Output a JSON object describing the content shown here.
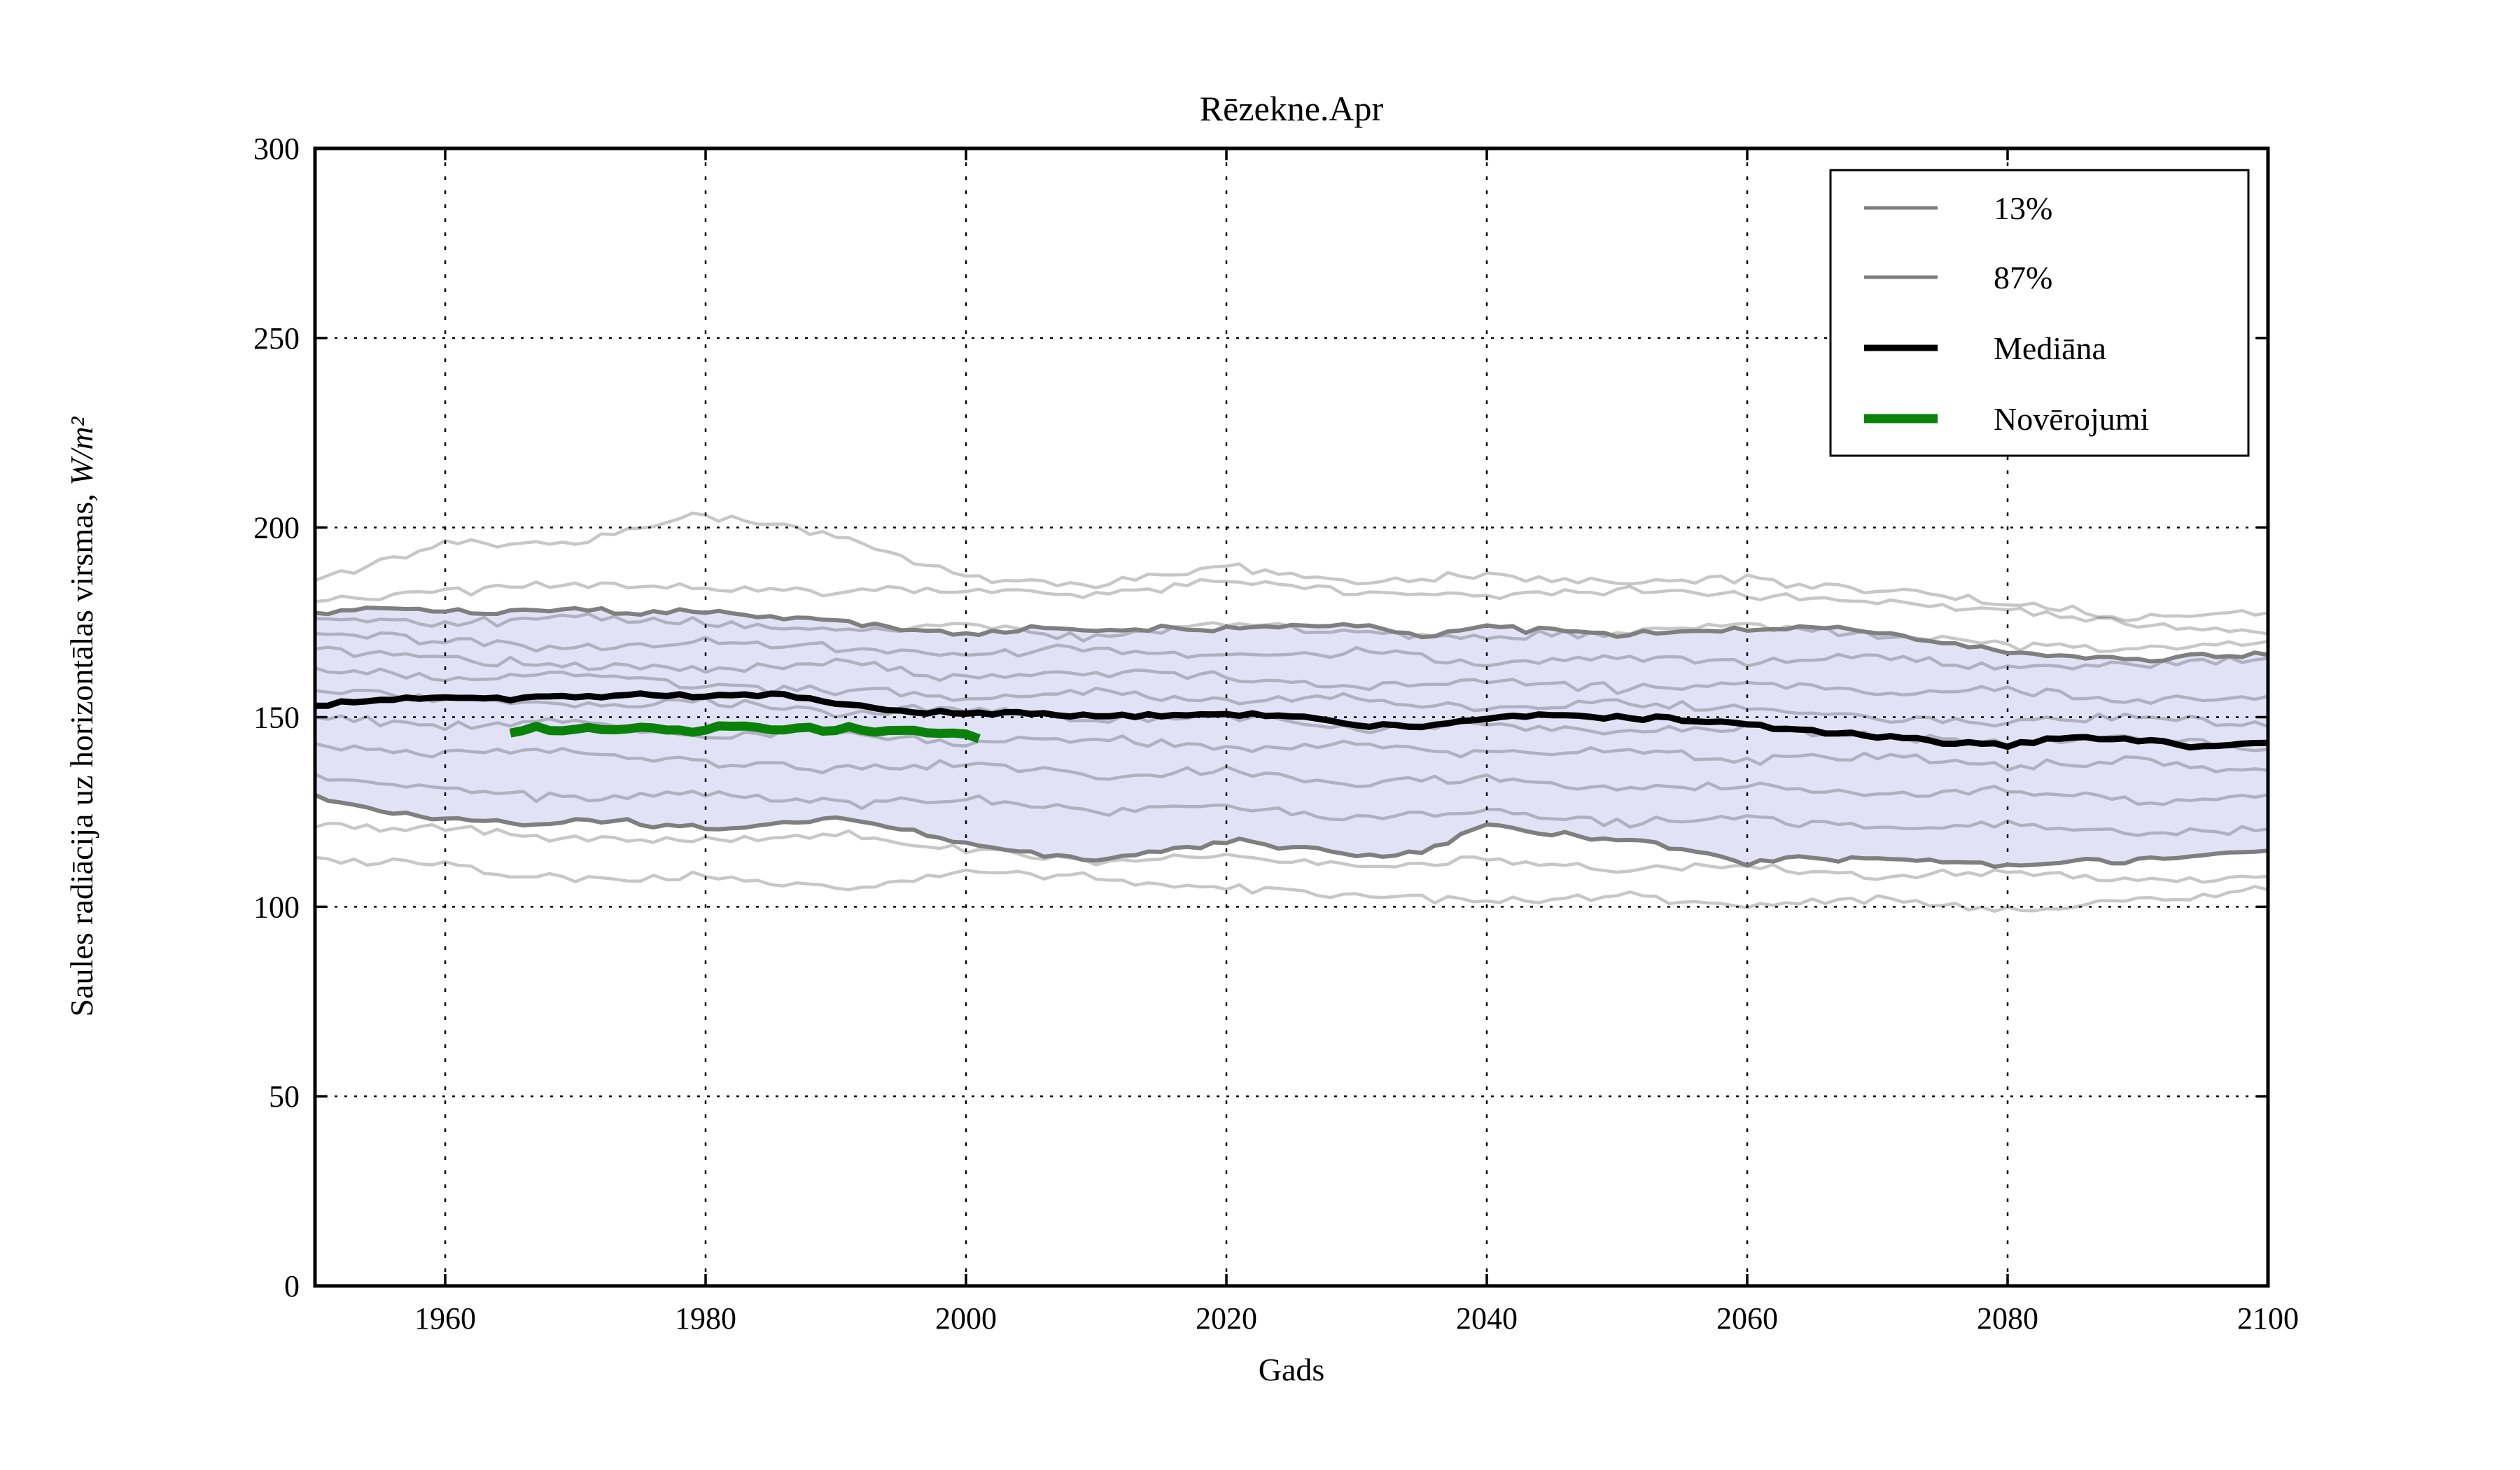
{
  "chart_data": {
    "type": "line",
    "title": "Rēzekne.Apr",
    "xlabel": "Gads",
    "ylabel_text": "Saules radiācija uz horizontālas virsmas, ",
    "ylabel_math": "W/m²",
    "xlim": [
      1950,
      2100
    ],
    "ylim": [
      0,
      300
    ],
    "xticks": [
      1960,
      1980,
      2000,
      2020,
      2040,
      2060,
      2080,
      2100
    ],
    "yticks": [
      0,
      50,
      100,
      150,
      200,
      250,
      300
    ],
    "grid": true,
    "legend_position": "upper right",
    "legend_entries": [
      {
        "label": "13%",
        "color": "#7f7f7f",
        "width": 5,
        "role": "percentile-low"
      },
      {
        "label": "87%",
        "color": "#7f7f7f",
        "width": 5,
        "role": "percentile-high"
      },
      {
        "label": "Mediāna",
        "color": "#000000",
        "width": 9,
        "role": "median"
      },
      {
        "label": "Novērojumi",
        "color": "#0a820a",
        "width": 13,
        "role": "observations"
      }
    ],
    "band_fill_color": "#e2e2f7",
    "ensemble_color": "rgba(0,0,0,0.22)",
    "percentile_color": "#7f7f7f",
    "median_color": "#000000",
    "observations_color": "#0a820a",
    "series": {
      "x_step5": [
        1950,
        1955,
        1960,
        1965,
        1970,
        1975,
        1980,
        1985,
        1990,
        1995,
        2000,
        2005,
        2010,
        2015,
        2020,
        2025,
        2030,
        2035,
        2040,
        2045,
        2050,
        2055,
        2060,
        2065,
        2070,
        2075,
        2080,
        2085,
        2090,
        2095,
        2100
      ],
      "median": [
        153,
        154.5,
        155.5,
        155,
        155.5,
        156,
        155.5,
        156,
        153.5,
        151.5,
        150.8,
        151.3,
        150,
        150.5,
        151,
        150.3,
        147.8,
        147.6,
        149.8,
        150.4,
        150,
        149.4,
        148,
        146.3,
        144.8,
        143.4,
        142.6,
        145,
        144,
        142.2,
        143.2
      ],
      "p87": [
        177.5,
        179,
        178.3,
        177.7,
        178.6,
        177.4,
        178.2,
        176.4,
        175.4,
        173.3,
        171.8,
        173.8,
        172.8,
        173.4,
        173,
        174,
        174.8,
        171.4,
        173.8,
        172.8,
        171.8,
        172.4,
        173.2,
        174,
        172.2,
        169.6,
        167.4,
        165.8,
        165.4,
        165.9,
        166.4
      ],
      "p13": [
        129.5,
        125.4,
        123.4,
        121.8,
        122.6,
        122.2,
        120.4,
        121.4,
        123,
        120.8,
        116.8,
        114.4,
        112.6,
        114.2,
        117.4,
        115.4,
        113.4,
        114,
        122,
        119.6,
        117.4,
        115.4,
        111.8,
        113,
        112.4,
        112,
        111,
        112.4,
        112,
        113.6,
        114.8
      ],
      "observations_x": [
        1965,
        1967,
        1969,
        1971,
        1973,
        1975,
        1977,
        1979,
        1981,
        1983,
        1985,
        1987,
        1989,
        1991,
        1993,
        1995,
        1997,
        1999,
        2001
      ],
      "observations": [
        145.8,
        147.3,
        146.4,
        147.2,
        146.5,
        147.6,
        147.2,
        146.2,
        147.4,
        147.9,
        146.4,
        147.2,
        146.6,
        147.3,
        146.2,
        146.8,
        145.9,
        146.3,
        144.3
      ],
      "ensemble_x": [
        1950,
        1960,
        1970,
        1980,
        1990,
        2000,
        2010,
        2020,
        2030,
        2040,
        2050,
        2060,
        2070,
        2080,
        2090,
        2100
      ],
      "ensemble": [
        [
          186,
          196,
          196.5,
          203,
          198,
          186.5,
          185,
          190,
          185.5,
          187.5,
          185.5,
          186.5,
          183.5,
          180,
          176,
          177.5
        ],
        [
          180.5,
          183,
          185,
          184,
          183,
          183.5,
          182,
          186,
          183,
          182,
          183.5,
          182,
          180.5,
          178,
          174.5,
          172
        ],
        [
          176,
          174.5,
          176.5,
          175,
          173,
          174.5,
          171,
          174.5,
          172,
          171,
          172.5,
          174.5,
          171.5,
          169,
          167.5,
          170
        ],
        [
          172,
          170,
          168,
          170.5,
          168,
          166.5,
          168,
          166,
          167.5,
          164,
          166,
          164.5,
          166.5,
          163,
          163.5,
          165.5
        ],
        [
          168,
          165.5,
          164,
          162.5,
          164.5,
          160,
          162,
          160.5,
          158,
          160,
          157.5,
          159,
          156.5,
          157,
          154,
          155.5
        ],
        [
          163,
          160,
          161.5,
          158,
          157,
          155.5,
          157,
          154,
          155.5,
          152.5,
          154,
          152,
          150,
          148.5,
          150,
          147.5
        ],
        [
          157,
          155,
          153,
          154.5,
          151,
          152.5,
          149,
          150.5,
          147,
          148.5,
          146,
          147.5,
          144.5,
          143,
          144.5,
          141.5
        ],
        [
          150,
          147.5,
          148.5,
          145,
          146.5,
          143,
          144.5,
          141.5,
          143,
          140,
          141.5,
          138.5,
          140,
          137,
          138.5,
          136
        ],
        [
          143,
          140,
          141.5,
          138,
          136.5,
          138,
          134.5,
          136,
          132.5,
          134,
          131,
          132.5,
          129.5,
          131,
          128,
          129.5
        ],
        [
          135,
          131,
          128.5,
          130,
          127,
          128.5,
          125,
          126.5,
          123.5,
          125,
          122,
          123.5,
          120.5,
          122,
          119,
          120.5
        ],
        [
          121,
          120.5,
          118,
          117.5,
          119.5,
          115,
          112,
          114,
          110.5,
          112.5,
          109.5,
          111,
          108,
          109.5,
          106.5,
          108
        ],
        [
          113,
          110.5,
          107,
          108,
          104.5,
          109.5,
          107.5,
          105,
          103,
          101,
          103,
          100,
          102,
          99,
          101.5,
          104.5
        ]
      ]
    }
  }
}
